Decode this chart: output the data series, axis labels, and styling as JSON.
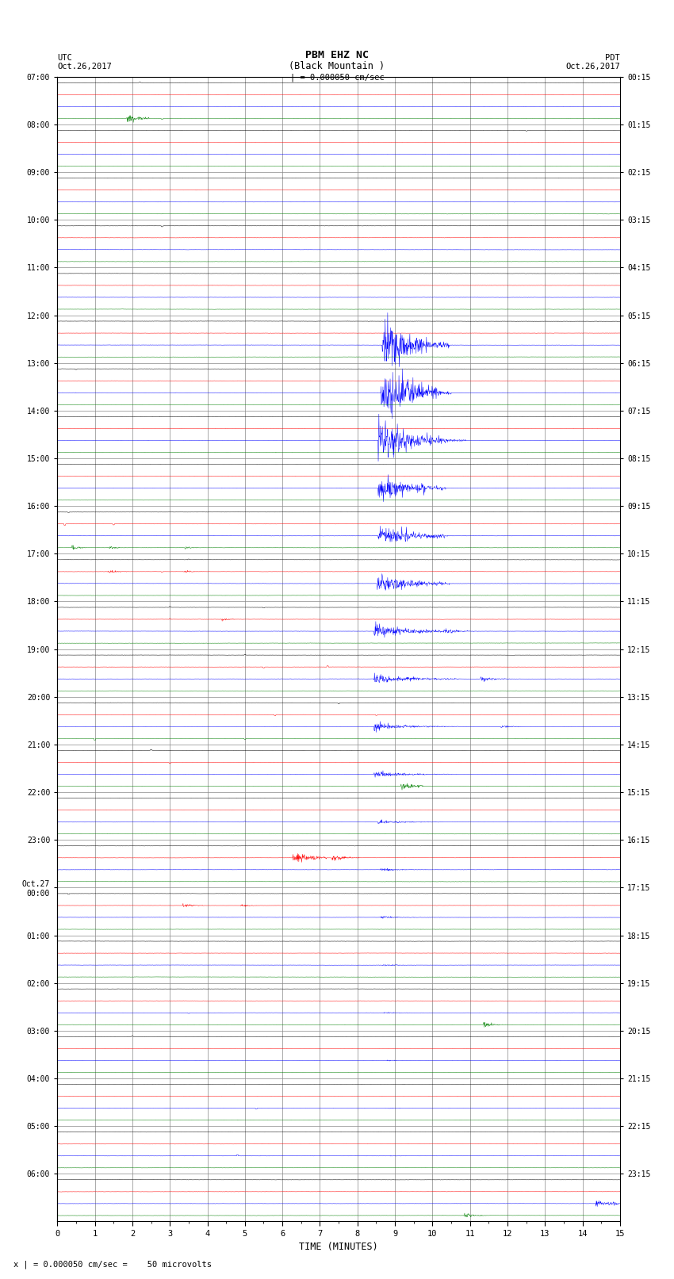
{
  "title_line1": "PBM EHZ NC",
  "title_line2": "(Black Mountain )",
  "scale_label": "| = 0.000050 cm/sec",
  "utc_label": "UTC\nOct.26,2017",
  "pdt_label": "PDT\nOct.26,2017",
  "xlabel": "TIME (MINUTES)",
  "bottom_label": "x | = 0.000050 cm/sec =    50 microvolts",
  "left_times": [
    "07:00",
    "08:00",
    "09:00",
    "10:00",
    "11:00",
    "12:00",
    "13:00",
    "14:00",
    "15:00",
    "16:00",
    "17:00",
    "18:00",
    "19:00",
    "20:00",
    "21:00",
    "22:00",
    "23:00",
    "Oct.27\n00:00",
    "01:00",
    "02:00",
    "03:00",
    "04:00",
    "05:00",
    "06:00"
  ],
  "right_times": [
    "00:15",
    "01:15",
    "02:15",
    "03:15",
    "04:15",
    "05:15",
    "06:15",
    "07:15",
    "08:15",
    "09:15",
    "10:15",
    "11:15",
    "12:15",
    "13:15",
    "14:15",
    "15:15",
    "16:15",
    "17:15",
    "18:15",
    "19:15",
    "20:15",
    "21:15",
    "22:15",
    "23:15"
  ],
  "n_rows": 24,
  "n_cols": 4,
  "minutes": 15,
  "background": "#ffffff",
  "line_colors": [
    "black",
    "red",
    "blue",
    "green"
  ],
  "grid_color": "#aaaaaa",
  "axis_bg": "#ffffff"
}
